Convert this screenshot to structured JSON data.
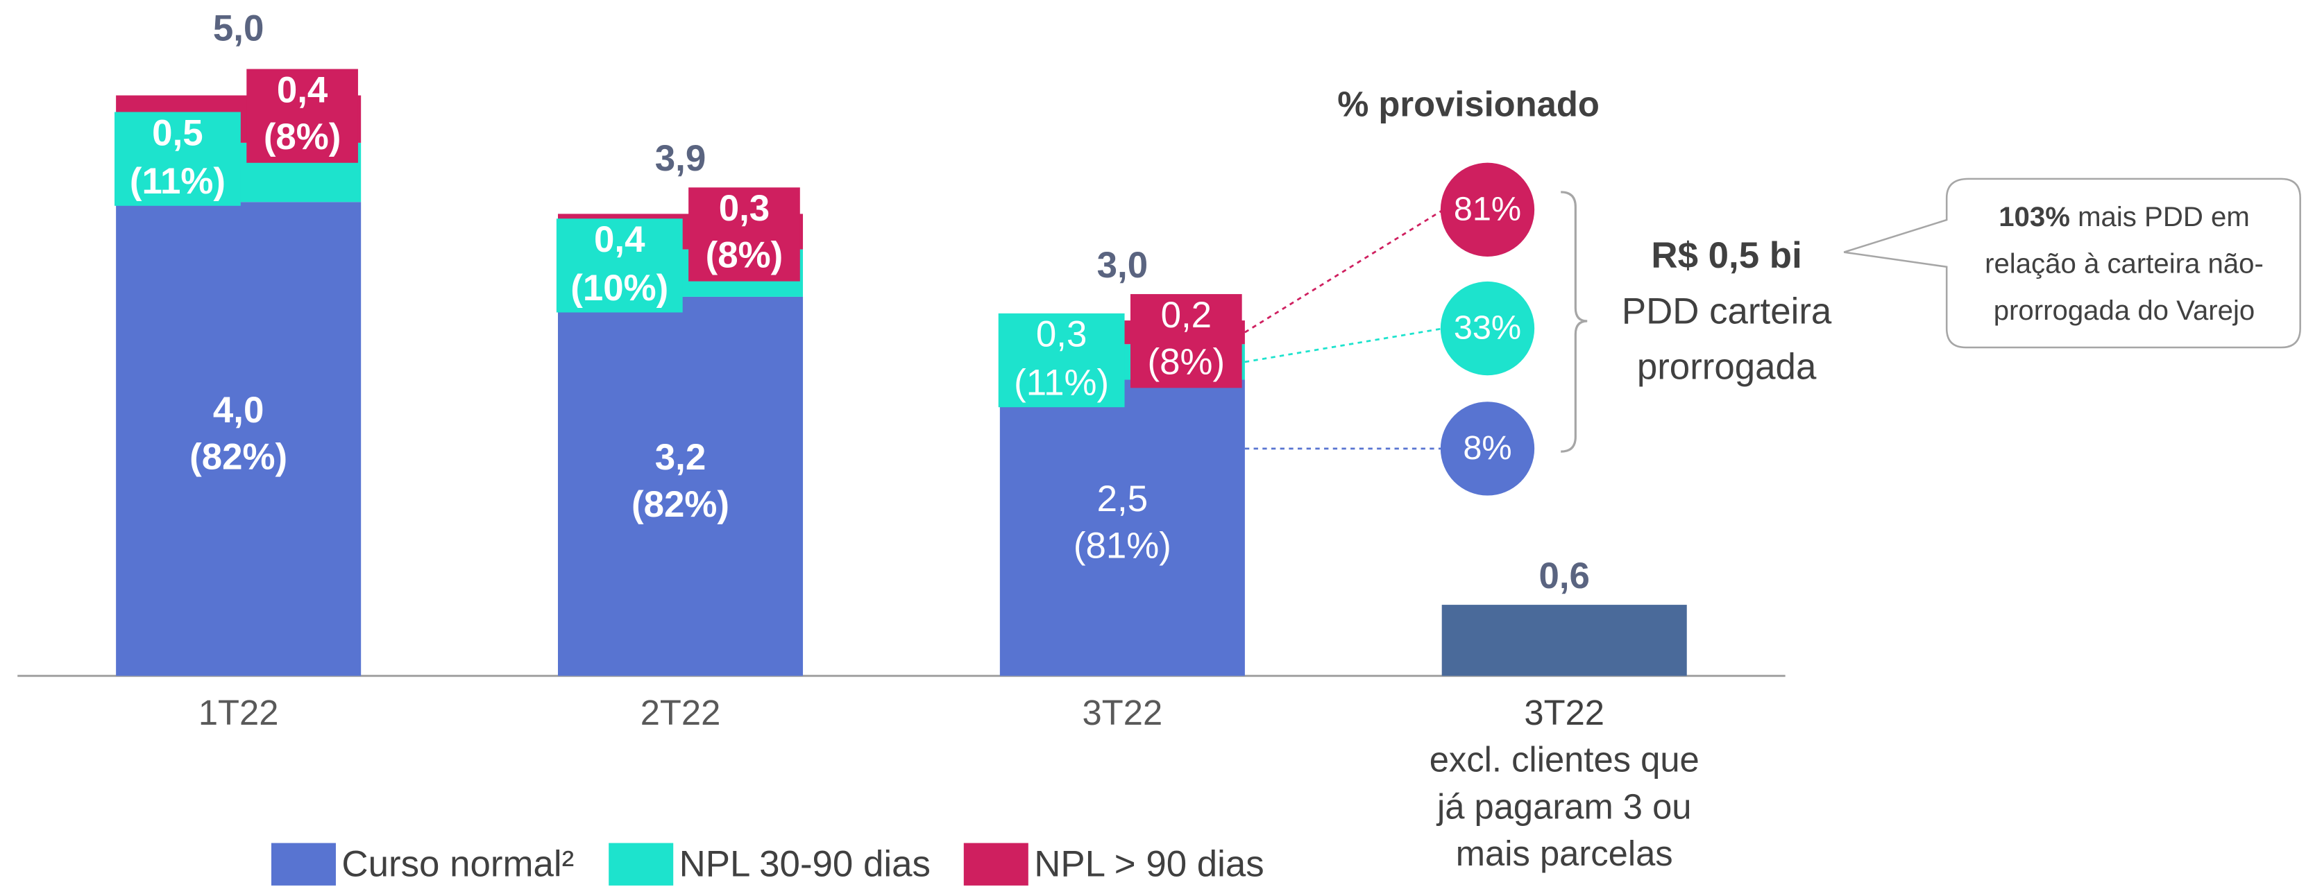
{
  "chart_data": {
    "type": "stacked_bar",
    "categories": [
      "1T22",
      "2T22",
      "3T22"
    ],
    "series": [
      {
        "name": "Curso normal²",
        "color": "#5874d1",
        "values": [
          4.0,
          3.2,
          2.5
        ],
        "value_labels": [
          "4,0",
          "3,2",
          "2,5"
        ],
        "shares": [
          82,
          82,
          81
        ],
        "share_labels": [
          "(82%)",
          "(82%)",
          "(81%)"
        ]
      },
      {
        "name": "NPL 30-90 dias",
        "color": "#1de3cd",
        "values": [
          0.5,
          0.4,
          0.3
        ],
        "value_labels": [
          "0,5",
          "0,4",
          "0,3"
        ],
        "shares": [
          11,
          10,
          11
        ],
        "share_labels": [
          "(11%)",
          "(10%)",
          "(11%)"
        ]
      },
      {
        "name": "NPL > 90 dias",
        "color": "#cf1f5f",
        "values": [
          0.4,
          0.3,
          0.2
        ],
        "value_labels": [
          "0,4",
          "0,3",
          "0,2"
        ],
        "shares": [
          8,
          8,
          8
        ],
        "share_labels": [
          "(8%)",
          "(8%)",
          "(8%)"
        ]
      }
    ],
    "totals": [
      5.0,
      3.9,
      3.0
    ],
    "total_labels": [
      "5,0",
      "3,9",
      "3,0"
    ],
    "label_weight": [
      "bold",
      "bold",
      "normal"
    ],
    "excl_bar": {
      "category": "3T22",
      "note_lines": [
        "excl. clientes que",
        "já pagaram 3 ou",
        "mais parcelas"
      ],
      "value": 0.6,
      "value_label": "0,6",
      "color": "#4a6a9a"
    },
    "ylim": [
      0,
      5.6
    ],
    "provision": {
      "title": "% provisionado",
      "values": [
        81,
        33,
        8
      ],
      "labels": [
        "81%",
        "33%",
        "8%"
      ]
    },
    "brace_text": {
      "bold": "R$ 0,5 bi",
      "lines": [
        "PDD carteira",
        "prorrogada"
      ]
    },
    "callout": {
      "bold": "103%",
      "lines": [
        " mais PDD em",
        "relação à carteira não-",
        "prorrogada do Varejo"
      ]
    }
  }
}
